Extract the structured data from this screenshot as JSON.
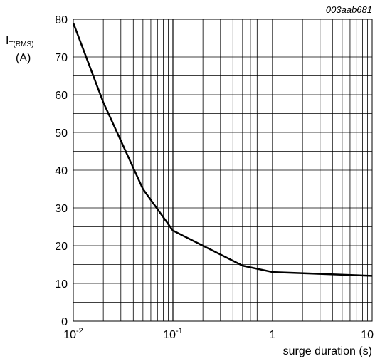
{
  "chart_data": {
    "type": "line",
    "figure_code": "003aab681",
    "ylabel": {
      "main": "I",
      "sub": "T(RMS)",
      "unit": "(A)"
    },
    "xlabel": "surge duration (s)",
    "xscale": "log",
    "xlim": [
      0.01,
      10
    ],
    "ylim": [
      0,
      80
    ],
    "grid": true,
    "x_ticks": [
      {
        "value": 0.01,
        "base": "10",
        "exp": "-2"
      },
      {
        "value": 0.1,
        "base": "10",
        "exp": "-1"
      },
      {
        "value": 1,
        "base": "1",
        "exp": ""
      },
      {
        "value": 10,
        "base": "10",
        "exp": ""
      }
    ],
    "y_ticks": [
      "0",
      "10",
      "20",
      "30",
      "40",
      "50",
      "60",
      "70",
      "80"
    ],
    "series": [
      {
        "x": [
          0.01,
          0.02,
          0.05,
          0.1,
          0.2,
          0.5,
          1,
          10
        ],
        "y": [
          79,
          58,
          35,
          24,
          20,
          14.7,
          13,
          12
        ]
      }
    ]
  }
}
